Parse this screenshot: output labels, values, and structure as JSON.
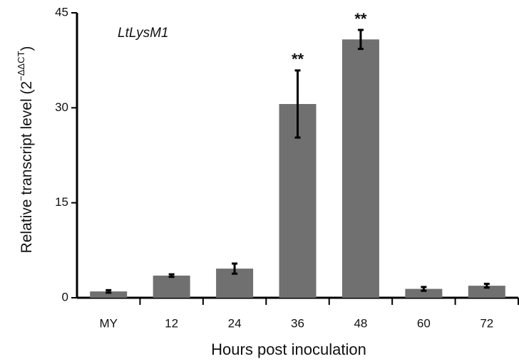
{
  "chart_data": {
    "type": "bar",
    "annotation": "LtLysM1",
    "x_label": "Hours post inoculation",
    "y_label": "Relative transcript level (2",
    "y_label_sup": "−ΔΔCT",
    "y_label_end": ")",
    "categories": [
      "MY",
      "12",
      "24",
      "36",
      "48",
      "60",
      "72"
    ],
    "values": [
      1.0,
      3.5,
      4.6,
      30.6,
      40.8,
      1.4,
      1.9
    ],
    "errors": [
      0.2,
      0.2,
      0.8,
      5.3,
      1.5,
      0.3,
      0.3
    ],
    "significance": [
      null,
      null,
      null,
      "**",
      "**",
      null,
      null
    ],
    "color": "#707070",
    "ylim": [
      0,
      45
    ],
    "yticks": [
      0,
      15,
      30,
      45
    ]
  }
}
